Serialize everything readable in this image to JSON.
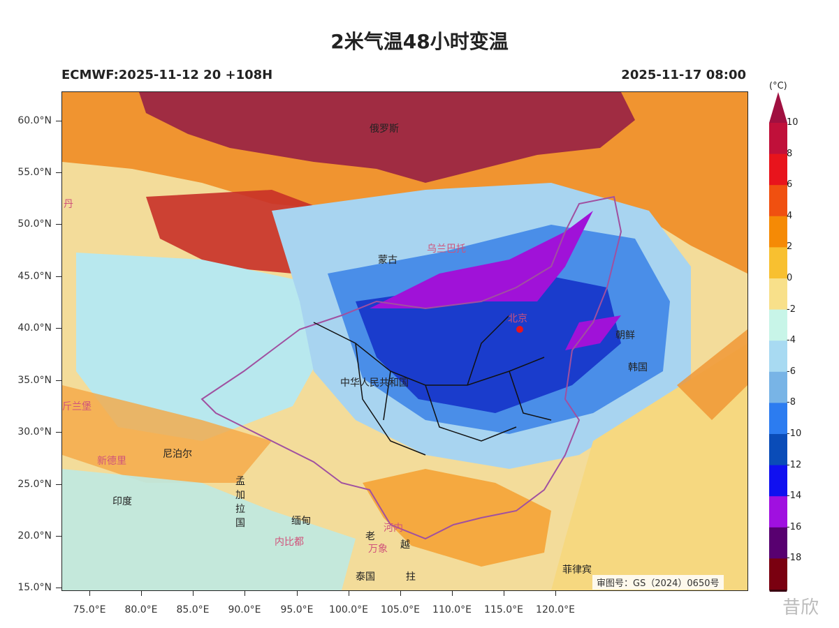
{
  "title": "2米气温48小时变温",
  "subtitle_left": "ECMWF:2025-11-12 20 +108H",
  "subtitle_right": "2025-11-17 08:00",
  "credit": "审图号：GS（2024）0650号",
  "watermark": "昔欣",
  "lat_labels": [
    "60.0°N",
    "55.0°N",
    "50.0°N",
    "45.0°N",
    "40.0°N",
    "35.0°N",
    "30.0°N",
    "25.0°N",
    "20.0°N",
    "15.0°N"
  ],
  "lon_labels": [
    "75.0°E",
    "80.0°E",
    "85.0°E",
    "90.0°E",
    "95.0°E",
    "100.0°E",
    "105.0°E",
    "110.0°E",
    "115.0°E",
    "120.0°E"
  ],
  "colorbar": {
    "unit": "(°C)",
    "labels": [
      "10",
      "8",
      "6",
      "4",
      "2",
      "0",
      "-2",
      "-4",
      "-6",
      "-8",
      "-10",
      "-12",
      "-14",
      "-16",
      "-18"
    ],
    "colors": [
      "#c0103a",
      "#e8141c",
      "#f05010",
      "#f58a05",
      "#f8c030",
      "#f8e08a",
      "#c8f5e8",
      "#a8daf2",
      "#78b4e6",
      "#2c7cf0",
      "#0a4cb8",
      "#1010f0",
      "#a010e0",
      "#580070",
      "#7a0010"
    ],
    "top_color": "#a01040",
    "bottom_color": "#3a0010"
  },
  "places": {
    "russia": "俄罗斯",
    "mongolia": "蒙古",
    "ulaanbaatar": "乌兰巴托",
    "beijing": "北京",
    "china": "中华人民共和国",
    "nkorea": "朝鲜",
    "skorea": "韩国",
    "nepal": "尼泊尔",
    "bangladesh": "孟加拉国",
    "india": "印度",
    "new_delhi": "新德里",
    "myanmar": "缅甸",
    "naypyidaw": "内比都",
    "laos": "老",
    "vientiane": "万象",
    "hanoi": "河内",
    "vietnam": "越",
    "thailand": "泰国",
    "cambodia": "拄",
    "philippines": "菲律宾",
    "dan": "丹",
    "xinlanbao": "斤兰堡"
  }
}
